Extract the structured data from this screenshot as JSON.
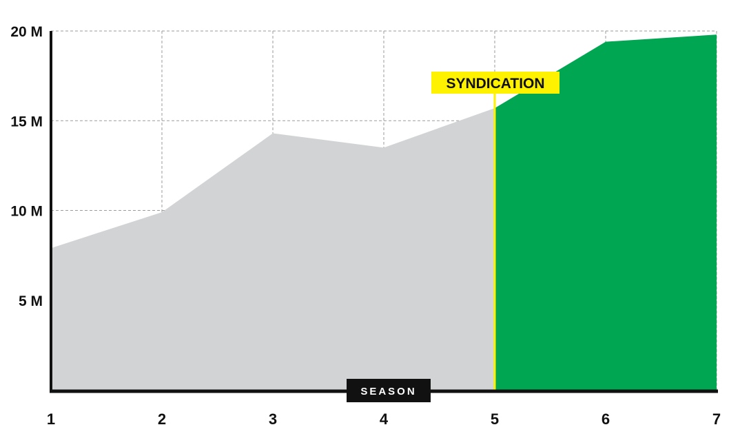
{
  "chart_data": {
    "type": "area",
    "xlabel": "SEASON",
    "x": [
      1,
      2,
      3,
      4,
      5,
      6,
      7
    ],
    "y": [
      7.9,
      9.9,
      14.3,
      13.5,
      15.7,
      19.4,
      19.8
    ],
    "ylim": [
      0,
      20
    ],
    "xlim": [
      1,
      7
    ],
    "y_ticks": [
      {
        "value": 5,
        "label": "5 M"
      },
      {
        "value": 10,
        "label": "10 M"
      },
      {
        "value": 15,
        "label": "15 M"
      },
      {
        "value": 20,
        "label": "20 M"
      }
    ],
    "x_ticks": [
      "1",
      "2",
      "3",
      "4",
      "5",
      "6",
      "7"
    ],
    "grid": true,
    "split_at": 5,
    "annotation": {
      "label": "SYNDICATION",
      "x": 5
    },
    "colors": {
      "before": "#d2d3d5",
      "after": "#00a651",
      "marker": "#fff200",
      "axis": "#111111",
      "grid": "#9a9a9a"
    }
  }
}
